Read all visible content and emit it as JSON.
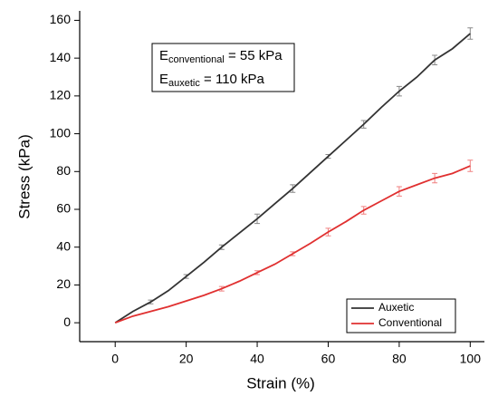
{
  "chart_data": {
    "type": "line",
    "xlabel": "Strain (%)",
    "ylabel": "Stress (kPa)",
    "x": [
      0,
      5,
      10,
      15,
      20,
      25,
      30,
      35,
      40,
      45,
      50,
      55,
      60,
      65,
      70,
      75,
      80,
      85,
      90,
      95,
      100
    ],
    "series": [
      {
        "name": "Auxetic",
        "color": "#333333",
        "errcolor": "#888888",
        "values": [
          0,
          6,
          11,
          17,
          24.5,
          32,
          40,
          47.5,
          55,
          63,
          71,
          79.5,
          88,
          96.5,
          105,
          114,
          122.5,
          130,
          139,
          145,
          153
        ],
        "errors": [
          null,
          null,
          1,
          null,
          1,
          null,
          1.2,
          null,
          2.5,
          null,
          2,
          null,
          1,
          null,
          2,
          null,
          2.5,
          null,
          2.5,
          null,
          3
        ]
      },
      {
        "name": "Conventional",
        "color": "#e03030",
        "errcolor": "#f08080",
        "values": [
          0,
          3.5,
          6,
          8.5,
          11.5,
          14.5,
          18,
          22,
          26.5,
          31,
          36.5,
          42,
          48,
          53.5,
          59.5,
          64.5,
          69.5,
          73,
          76.5,
          79,
          83
        ],
        "errors": [
          null,
          null,
          null,
          null,
          null,
          null,
          1.2,
          null,
          1,
          null,
          1,
          null,
          2,
          null,
          2,
          null,
          2.5,
          null,
          2.5,
          null,
          3
        ]
      }
    ],
    "annotation": [
      {
        "main": "E",
        "sub": "conventional",
        "rest": " = 55 kPa"
      },
      {
        "main": "E",
        "sub": "auxetic",
        "rest": " = 110 kPa"
      }
    ],
    "xlim": [
      -10,
      104
    ],
    "xticks": [
      0,
      20,
      40,
      60,
      80,
      100
    ],
    "ylim": [
      -10,
      165
    ],
    "yticks": [
      0,
      20,
      40,
      60,
      80,
      100,
      120,
      140,
      160
    ],
    "legend": "lower right"
  }
}
